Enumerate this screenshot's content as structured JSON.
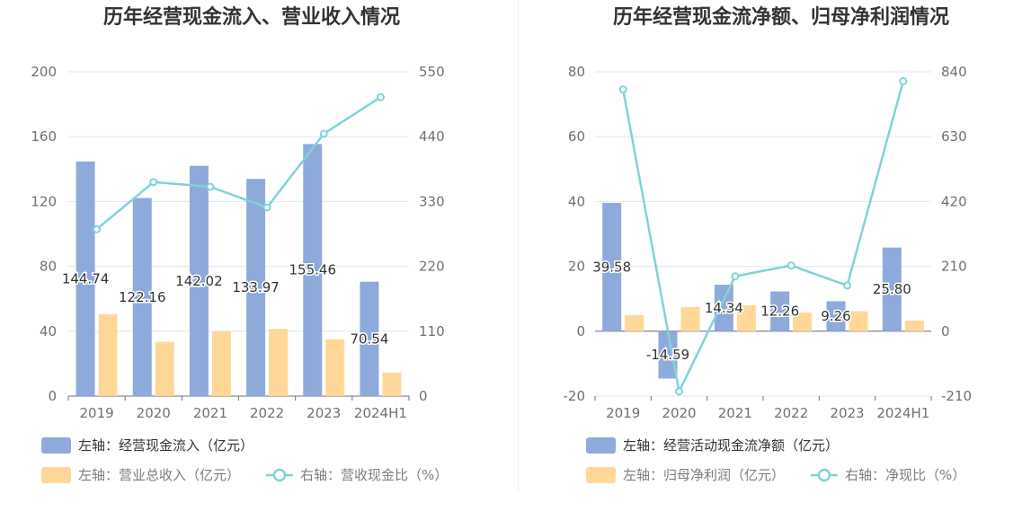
{
  "chart_data": [
    {
      "type": "bar",
      "title": "历年经营现金流入、营业收入情况",
      "categories": [
        "2019",
        "2020",
        "2021",
        "2022",
        "2023",
        "2024H1"
      ],
      "left_axis": {
        "ticks": [
          "0",
          "40",
          "80",
          "120",
          "160",
          "200"
        ],
        "ylim": [
          0,
          200
        ]
      },
      "right_axis": {
        "ticks": [
          "0",
          "110",
          "220",
          "330",
          "440",
          "550"
        ],
        "ylim": [
          0,
          550
        ]
      },
      "series": [
        {
          "name": "左轴：经营现金流入（亿元）",
          "type": "bar",
          "axis": "left",
          "color": "#8eaadb",
          "values": [
            144.74,
            122.16,
            142.02,
            133.97,
            155.46,
            70.54
          ],
          "labels": [
            "144.74",
            "122.16",
            "142.02",
            "133.97",
            "155.46",
            "70.54"
          ]
        },
        {
          "name": "左轴：营业总收入（亿元）",
          "type": "bar",
          "axis": "left",
          "color": "#ffd899",
          "values": [
            50.5,
            33.5,
            40,
            41.5,
            35,
            14.5
          ]
        },
        {
          "name": "右轴：营收现金比（%）",
          "type": "line",
          "axis": "right",
          "color": "#7fd3d8",
          "values": [
            283,
            363,
            355,
            320,
            445,
            507
          ]
        }
      ],
      "legend_placement": "bottom"
    },
    {
      "type": "bar",
      "title": "历年经营现金流净额、归母净利润情况",
      "categories": [
        "2019",
        "2020",
        "2021",
        "2022",
        "2023",
        "2024H1"
      ],
      "left_axis": {
        "ticks": [
          "-20",
          "0",
          "20",
          "40",
          "60",
          "80"
        ],
        "ylim": [
          -20,
          80
        ]
      },
      "right_axis": {
        "ticks": [
          "-210",
          "0",
          "210",
          "420",
          "630",
          "840"
        ],
        "ylim": [
          -210,
          840
        ]
      },
      "series": [
        {
          "name": "左轴：经营活动现金流净额（亿元）",
          "type": "bar",
          "axis": "left",
          "color": "#8eaadb",
          "values": [
            39.58,
            -14.59,
            14.34,
            12.26,
            9.26,
            25.8
          ],
          "labels": [
            "39.58",
            "-14.59",
            "14.34",
            "12.26",
            "9.26",
            "25.80"
          ]
        },
        {
          "name": "左轴：归母净利润（亿元）",
          "type": "bar",
          "axis": "left",
          "color": "#ffd899",
          "values": [
            5,
            7.5,
            8,
            5.8,
            6.2,
            3.3
          ]
        },
        {
          "name": "右轴：净现比（%）",
          "type": "line",
          "axis": "right",
          "color": "#7fd3d8",
          "values": [
            783,
            -195,
            178,
            213,
            148,
            810
          ]
        }
      ],
      "legend_placement": "bottom"
    }
  ]
}
